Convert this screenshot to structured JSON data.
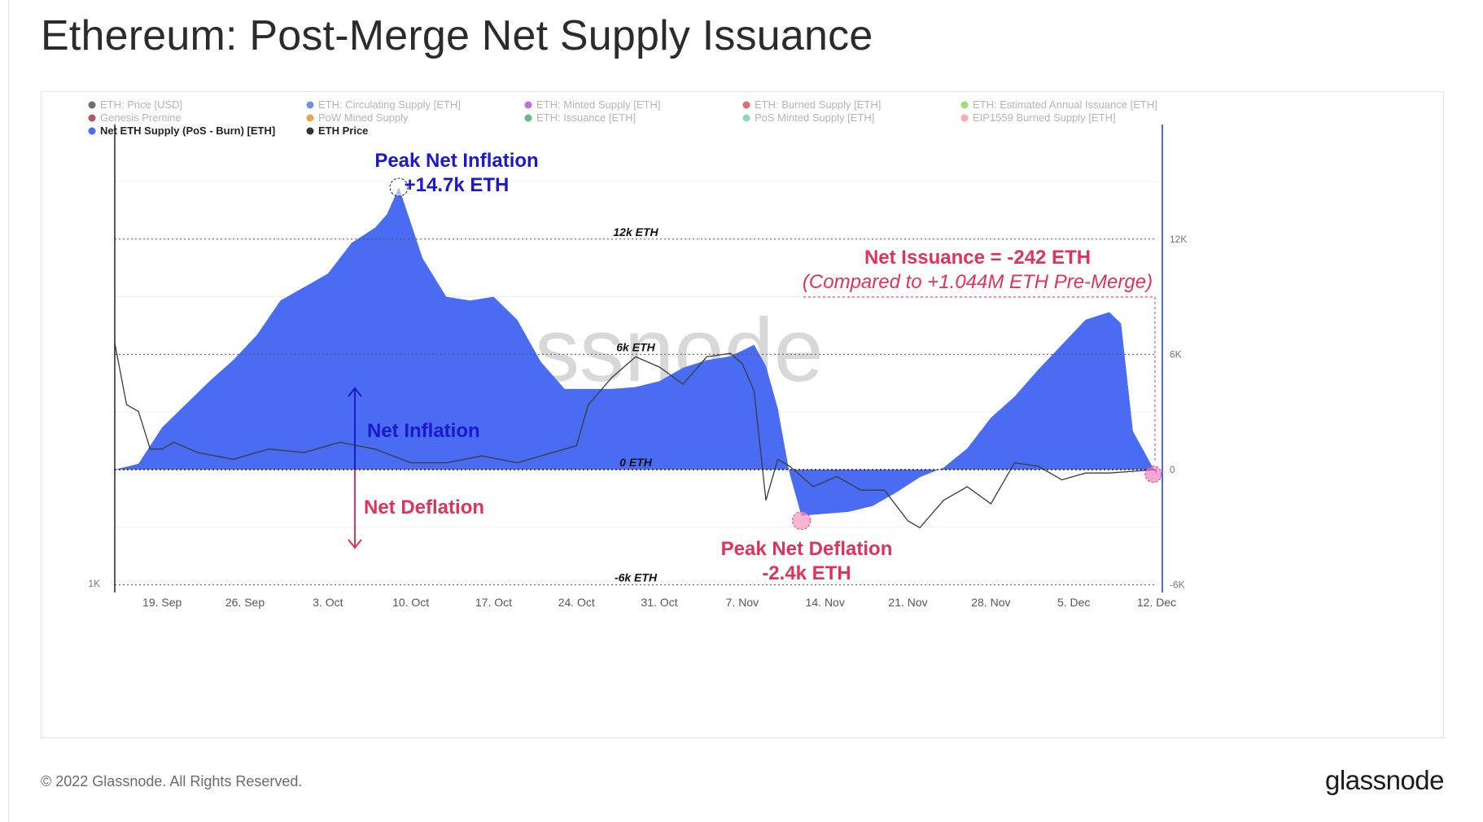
{
  "title": "Ethereum: Post-Merge Net Supply Issuance",
  "footer": {
    "copyright": "© 2022 Glassnode. All Rights Reserved.",
    "brand": "glassnode"
  },
  "colors": {
    "supply_fill": "#4a6cf2",
    "price_line": "#3b3b3b",
    "annotation_blue": "#1a1acc",
    "annotation_red": "#e0335a",
    "legend_text_faded": "#b5b5b5",
    "legend_text_active": "#222222"
  },
  "legend": [
    {
      "label": "ETH: Price [USD]",
      "color": "#555555",
      "active": false
    },
    {
      "label": "ETH: Circulating Supply [ETH]",
      "color": "#5b7ad9",
      "active": false
    },
    {
      "label": "ETH: Minted Supply [ETH]",
      "color": "#b455e0",
      "active": false
    },
    {
      "label": "ETH: Burned Supply [ETH]",
      "color": "#e05050",
      "active": false
    },
    {
      "label": "ETH: Estimated Annual Issuance [ETH]",
      "color": "#8fd65e",
      "active": false
    },
    {
      "label": "Genesis Premine",
      "color": "#a33a4a",
      "active": false
    },
    {
      "label": "PoW Mined Supply",
      "color": "#e8903a",
      "active": false
    },
    {
      "label": "ETH: Issuance [ETH]",
      "color": "#4caf6a",
      "active": false
    },
    {
      "label": "PoS Minted Supply [ETH]",
      "color": "#7fcfb0",
      "active": false
    },
    {
      "label": "EIP1559 Burned Supply [ETH]",
      "color": "#f0a0a8",
      "active": false
    },
    {
      "label": "Net ETH Supply (PoS - Burn) [ETH]",
      "color": "#4a6cf2",
      "active": true
    },
    {
      "label": "ETH Price",
      "color": "#333333",
      "active": true
    }
  ],
  "annotations": {
    "peak_inflation": {
      "line1": "Peak Net Inflation",
      "line2": "+14.7k ETH",
      "x": "9 Oct",
      "y": 14700
    },
    "peak_deflation": {
      "line1": "Peak Net Deflation",
      "line2": "-2.4k ETH",
      "x": "12 Nov",
      "y": -2400
    },
    "net_issuance": {
      "line1": "Net Issuance = -242 ETH",
      "line2": "(Compared to +1.044M ETH Pre-Merge)",
      "x": "12 Dec",
      "y": -242
    },
    "net_inflation_label": "Net Inflation",
    "net_deflation_label": "Net Deflation",
    "level_labels": {
      "12000": "12k ETH",
      "6000": "6k ETH",
      "0": "0 ETH",
      "-6000": "-6k ETH"
    }
  },
  "watermark": "glassnode",
  "chart_data": {
    "type": "area",
    "x_start": "2022-09-15",
    "x_end": "2022-12-12",
    "x_ticks": [
      "19. Sep",
      "26. Sep",
      "3. Oct",
      "10. Oct",
      "17. Oct",
      "24. Oct",
      "31. Oct",
      "7. Nov",
      "14. Nov",
      "21. Nov",
      "28. Nov",
      "5. Dec",
      "12. Dec"
    ],
    "y_right": {
      "ticks": [
        "12K",
        "6K",
        "0",
        "-6K"
      ],
      "range": [
        -6000,
        15000
      ]
    },
    "y_left": {
      "ticks": [
        "1K"
      ]
    },
    "series": [
      {
        "name": "Net ETH Supply (PoS - Burn) [ETH]",
        "style": "area",
        "points": [
          [
            "2022-09-15",
            0
          ],
          [
            "2022-09-17",
            300
          ],
          [
            "2022-09-19",
            2200
          ],
          [
            "2022-09-21",
            3400
          ],
          [
            "2022-09-23",
            4600
          ],
          [
            "2022-09-25",
            5700
          ],
          [
            "2022-09-27",
            7000
          ],
          [
            "2022-09-29",
            8800
          ],
          [
            "2022-10-01",
            9500
          ],
          [
            "2022-10-03",
            10200
          ],
          [
            "2022-10-05",
            11800
          ],
          [
            "2022-10-07",
            12600
          ],
          [
            "2022-10-08",
            13300
          ],
          [
            "2022-10-09",
            14700
          ],
          [
            "2022-10-11",
            11000
          ],
          [
            "2022-10-13",
            9000
          ],
          [
            "2022-10-15",
            8800
          ],
          [
            "2022-10-17",
            9000
          ],
          [
            "2022-10-19",
            7800
          ],
          [
            "2022-10-21",
            5600
          ],
          [
            "2022-10-23",
            4200
          ],
          [
            "2022-10-25",
            4200
          ],
          [
            "2022-10-27",
            4200
          ],
          [
            "2022-10-29",
            4300
          ],
          [
            "2022-10-31",
            4600
          ],
          [
            "2022-11-02",
            5300
          ],
          [
            "2022-11-04",
            5700
          ],
          [
            "2022-11-06",
            5900
          ],
          [
            "2022-11-08",
            6500
          ],
          [
            "2022-11-09",
            5400
          ],
          [
            "2022-11-10",
            3200
          ],
          [
            "2022-11-11",
            -200
          ],
          [
            "2022-11-12",
            -2400
          ],
          [
            "2022-11-14",
            -2300
          ],
          [
            "2022-11-16",
            -2200
          ],
          [
            "2022-11-18",
            -1900
          ],
          [
            "2022-11-20",
            -1200
          ],
          [
            "2022-11-22",
            -400
          ],
          [
            "2022-11-24",
            100
          ],
          [
            "2022-11-26",
            1100
          ],
          [
            "2022-11-28",
            2700
          ],
          [
            "2022-11-30",
            3800
          ],
          [
            "2022-12-02",
            5200
          ],
          [
            "2022-12-04",
            6500
          ],
          [
            "2022-12-06",
            7800
          ],
          [
            "2022-12-08",
            8200
          ],
          [
            "2022-12-09",
            7600
          ],
          [
            "2022-12-10",
            2000
          ],
          [
            "2022-12-12",
            -242
          ]
        ]
      },
      {
        "name": "ETH Price",
        "style": "line",
        "points": [
          [
            "2022-09-15",
            1640
          ],
          [
            "2022-09-16",
            1460
          ],
          [
            "2022-09-17",
            1440
          ],
          [
            "2022-09-18",
            1330
          ],
          [
            "2022-09-19",
            1330
          ],
          [
            "2022-09-20",
            1350
          ],
          [
            "2022-09-22",
            1320
          ],
          [
            "2022-09-25",
            1300
          ],
          [
            "2022-09-28",
            1330
          ],
          [
            "2022-10-01",
            1320
          ],
          [
            "2022-10-04",
            1350
          ],
          [
            "2022-10-07",
            1330
          ],
          [
            "2022-10-10",
            1290
          ],
          [
            "2022-10-13",
            1290
          ],
          [
            "2022-10-16",
            1310
          ],
          [
            "2022-10-19",
            1290
          ],
          [
            "2022-10-22",
            1320
          ],
          [
            "2022-10-24",
            1340
          ],
          [
            "2022-10-25",
            1460
          ],
          [
            "2022-10-27",
            1540
          ],
          [
            "2022-10-29",
            1600
          ],
          [
            "2022-10-31",
            1570
          ],
          [
            "2022-11-02",
            1520
          ],
          [
            "2022-11-04",
            1600
          ],
          [
            "2022-11-06",
            1610
          ],
          [
            "2022-11-07",
            1580
          ],
          [
            "2022-11-08",
            1500
          ],
          [
            "2022-11-09",
            1180
          ],
          [
            "2022-11-10",
            1300
          ],
          [
            "2022-11-11",
            1280
          ],
          [
            "2022-11-13",
            1220
          ],
          [
            "2022-11-15",
            1250
          ],
          [
            "2022-11-17",
            1210
          ],
          [
            "2022-11-19",
            1210
          ],
          [
            "2022-11-21",
            1120
          ],
          [
            "2022-11-22",
            1100
          ],
          [
            "2022-11-24",
            1180
          ],
          [
            "2022-11-26",
            1220
          ],
          [
            "2022-11-28",
            1170
          ],
          [
            "2022-11-30",
            1290
          ],
          [
            "2022-12-02",
            1280
          ],
          [
            "2022-12-04",
            1240
          ],
          [
            "2022-12-06",
            1260
          ],
          [
            "2022-12-08",
            1260
          ],
          [
            "2022-12-10",
            1265
          ],
          [
            "2022-12-12",
            1270
          ]
        ]
      }
    ]
  }
}
